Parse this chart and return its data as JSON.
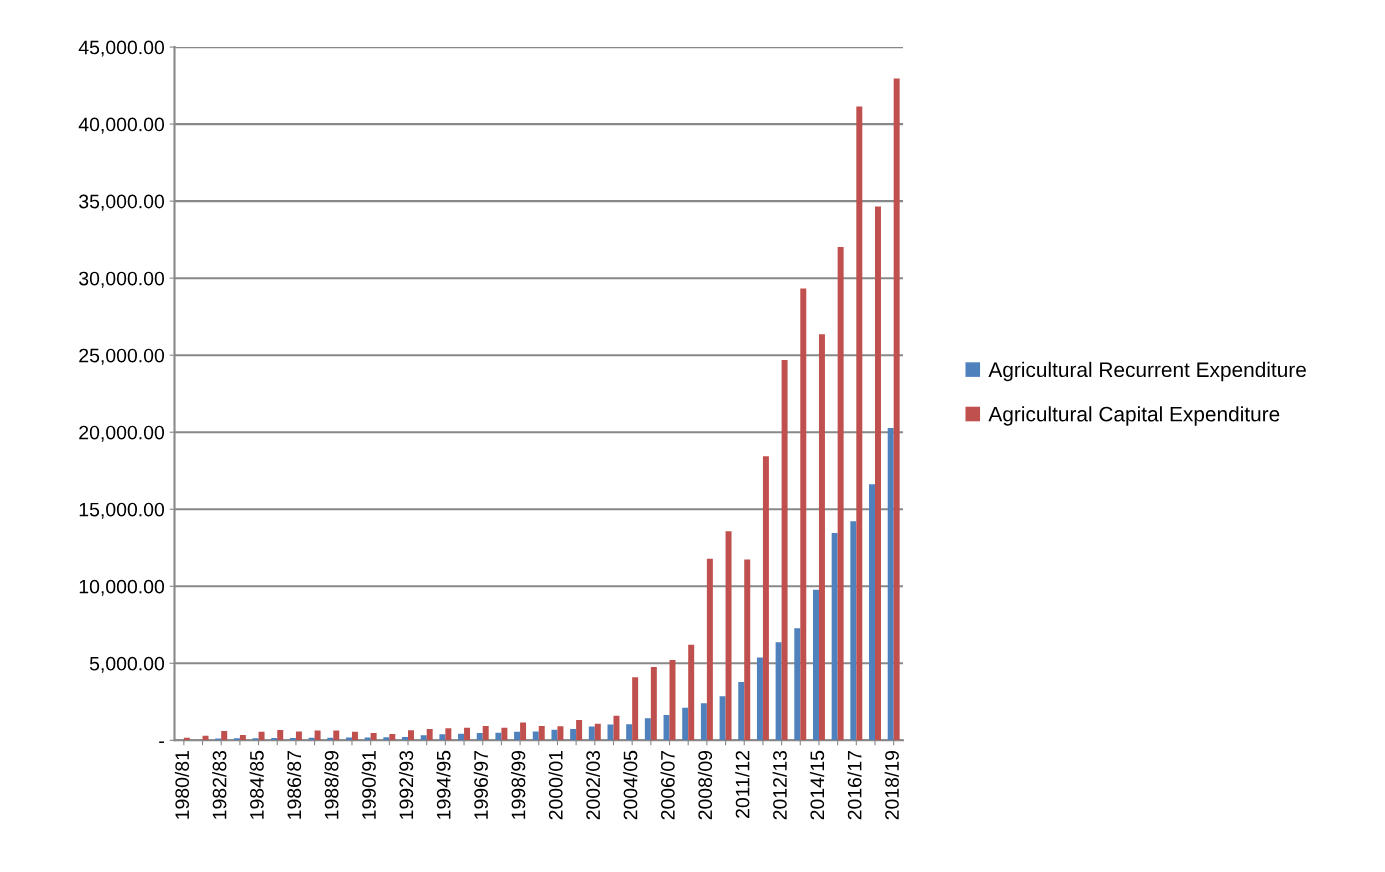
{
  "chart_data": {
    "type": "bar",
    "categories": [
      "1980/81",
      null,
      "1982/83",
      null,
      "1984/85",
      null,
      "1986/87",
      null,
      "1988/89",
      null,
      "1990/91",
      null,
      "1992/93",
      null,
      "1994/95",
      null,
      "1996/97",
      null,
      "1998/99",
      null,
      "2000/01",
      null,
      "2002/03",
      null,
      "2004/05",
      null,
      "2006/07",
      null,
      "2008/09",
      null,
      "2011/12",
      null,
      "2012/13",
      null,
      "2014/15",
      null,
      "2016/17",
      null,
      "2018/19"
    ],
    "series": [
      {
        "name": "Agricultural Recurrent Expenditure",
        "color": "#4f81bd",
        "values": [
          null,
          null,
          120,
          130,
          140,
          150,
          150,
          160,
          170,
          180,
          190,
          200,
          220,
          330,
          390,
          430,
          470,
          500,
          560,
          580,
          690,
          730,
          890,
          1020,
          1040,
          1430,
          1640,
          2120,
          2400,
          2860,
          3780,
          5370,
          6360,
          7270,
          9780,
          13460,
          14220,
          16620,
          20270
        ]
      },
      {
        "name": "Agricultural Capital Expenditure",
        "color": "#c0504d",
        "values": [
          170,
          300,
          600,
          350,
          560,
          670,
          580,
          630,
          630,
          560,
          470,
          410,
          650,
          730,
          780,
          820,
          930,
          820,
          1150,
          930,
          910,
          1320,
          1080,
          1600,
          4090,
          4760,
          5210,
          6210,
          11790,
          13570,
          11730,
          18440,
          24680,
          29330,
          26360,
          32030,
          41150,
          34660,
          42960
        ]
      }
    ],
    "ylim": [
      0,
      45000
    ],
    "yticks": [
      {
        "value": 0,
        "label": "-"
      },
      {
        "value": 5000,
        "label": "5,000.00"
      },
      {
        "value": 10000,
        "label": "10,000.00"
      },
      {
        "value": 15000,
        "label": "15,000.00"
      },
      {
        "value": 20000,
        "label": "20,000.00"
      },
      {
        "value": 25000,
        "label": "25,000.00"
      },
      {
        "value": 30000,
        "label": "30,000.00"
      },
      {
        "value": 35000,
        "label": "35,000.00"
      },
      {
        "value": 40000,
        "label": "40,000.00"
      },
      {
        "value": 45000,
        "label": "45,000.00"
      }
    ],
    "grid": "y",
    "legend": "right"
  }
}
